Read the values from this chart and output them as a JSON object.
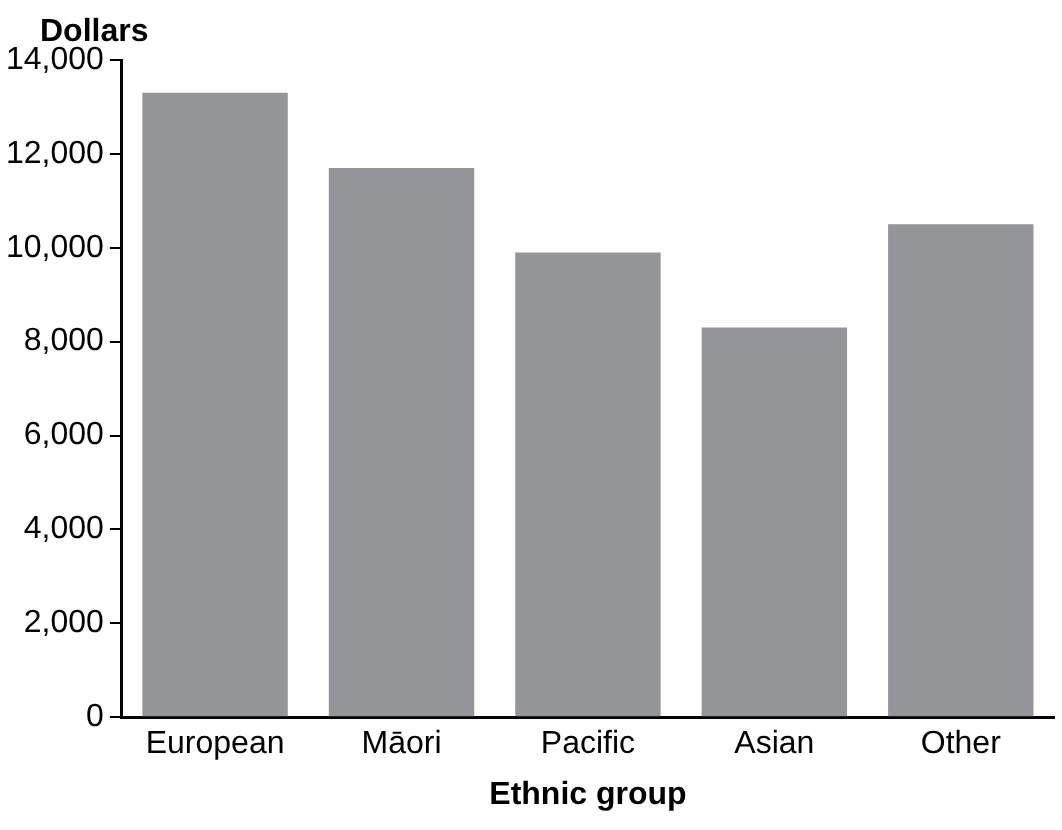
{
  "chart_data": {
    "type": "bar",
    "ylabel": "Dollars",
    "xlabel": "Ethnic group",
    "categories": [
      "European",
      "Māori",
      "Pacific",
      "Asian",
      "Other"
    ],
    "values": [
      13300,
      11700,
      9900,
      8300,
      10500
    ],
    "color": "#939598",
    "ylim": [
      0,
      14000
    ],
    "yticks": [
      {
        "value": 0,
        "label": "0"
      },
      {
        "value": 2000,
        "label": "2,000"
      },
      {
        "value": 4000,
        "label": "4,000"
      },
      {
        "value": 6000,
        "label": "6,000"
      },
      {
        "value": 8000,
        "label": "8,000"
      },
      {
        "value": 10000,
        "label": "10,000"
      },
      {
        "value": 12000,
        "label": "12,000"
      },
      {
        "value": 14000,
        "label": "14,000"
      }
    ],
    "grid": false,
    "legend": false
  }
}
